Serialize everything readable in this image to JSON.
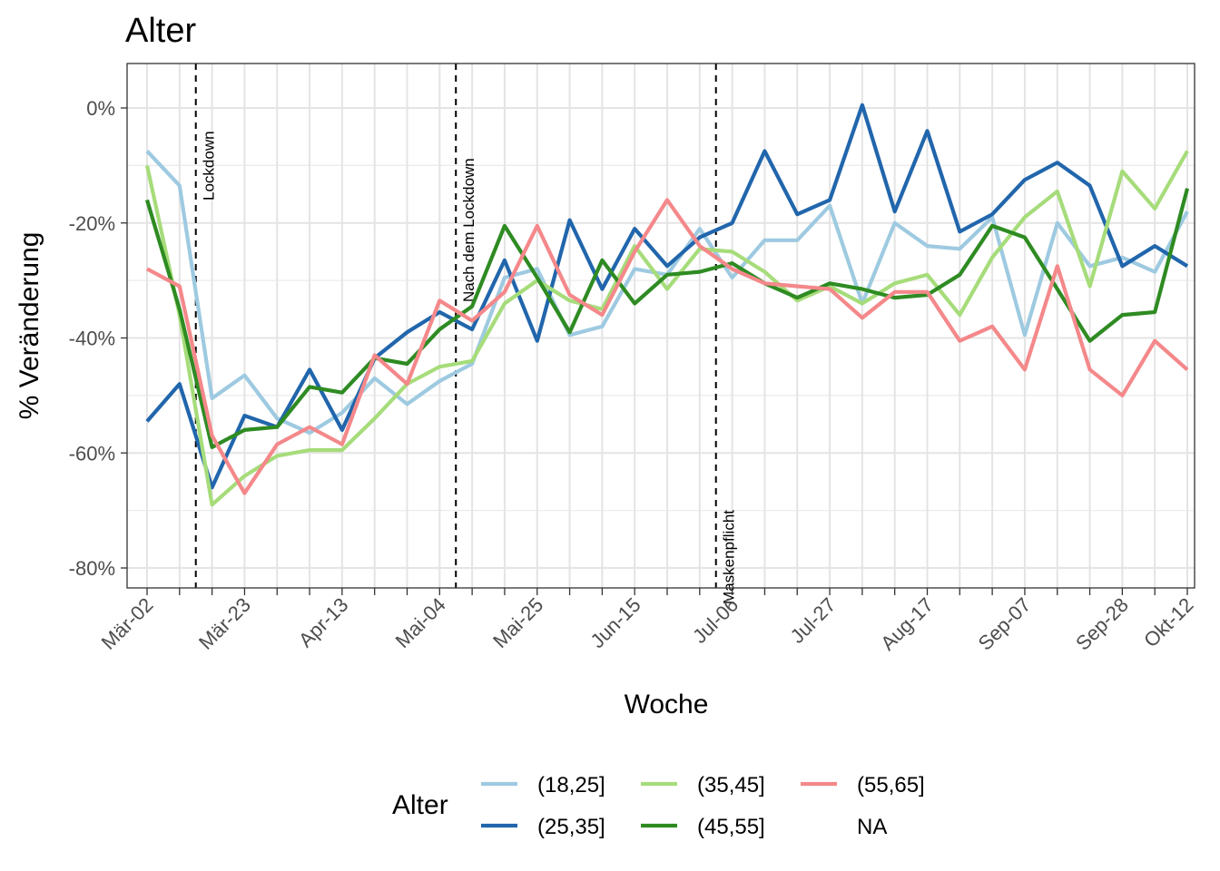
{
  "chart_data": {
    "type": "line",
    "title": "Alter",
    "xlabel": "Woche",
    "ylabel": "% Veränderung",
    "x_tick_labels": [
      "Mär-02",
      "Mär-23",
      "Apr-13",
      "Mai-04",
      "Mai-25",
      "Jun-15",
      "Jul-06",
      "Jul-27",
      "Aug-17",
      "Sep-07",
      "Sep-28",
      "Okt-12"
    ],
    "x_tick_index": [
      0,
      3,
      6,
      9,
      12,
      15,
      18,
      21,
      24,
      27,
      30,
      32
    ],
    "n_weeks": 33,
    "y_ticks": [
      0,
      -20,
      -40,
      -60,
      -80
    ],
    "y_tick_labels": [
      "0%",
      "-20%",
      "-40%",
      "-60%",
      "-80%"
    ],
    "ylim": [
      -84,
      8
    ],
    "grid": true,
    "legend": {
      "title": "Alter",
      "position": "bottom",
      "entries": [
        "(18,25]",
        "(25,35]",
        "(35,45]",
        "(45,55]",
        "(55,65]",
        "NA"
      ]
    },
    "annotations": [
      {
        "label": "Lockdown",
        "x_week": 1.5
      },
      {
        "label": "Nach dem Lockdown",
        "x_week": 9.5
      },
      {
        "label": "Maskenpflicht",
        "x_week": 17.5
      }
    ],
    "series": [
      {
        "name": "(18,25]",
        "color": "#9ecae1",
        "values": [
          -7.5,
          -13.5,
          -50.5,
          -46.5,
          -54,
          -56.5,
          -53,
          -47,
          -51.5,
          -47.5,
          -44.5,
          -29.5,
          -28,
          -39.5,
          -38,
          -28,
          -29,
          -21,
          -29.5,
          -23,
          -23,
          -17,
          -34,
          -20,
          -24,
          -24.5,
          -19,
          -39.5,
          -20,
          -27.5,
          -26,
          -28.5,
          -18
        ]
      },
      {
        "name": "(25,35]",
        "color": "#2166ac",
        "values": [
          -54.5,
          -48,
          -66,
          -53.5,
          -55.5,
          -45.5,
          -56,
          -43.5,
          -39,
          -35.5,
          -38.5,
          -26.5,
          -40.5,
          -19.5,
          -31.5,
          -21,
          -27.5,
          -22.5,
          -20,
          -7.5,
          -18.5,
          -16,
          0.5,
          -18,
          -4,
          -21.5,
          -18.5,
          -12.5,
          -9.5,
          -13.5,
          -27.5,
          -24,
          -27.5
        ]
      },
      {
        "name": "(35,45]",
        "color": "#a6dc7a",
        "values": [
          -10,
          -36,
          -69,
          -64,
          -60.5,
          -59.5,
          -59.5,
          -54,
          -48,
          -45,
          -44,
          -34,
          -30,
          -33.5,
          -35,
          -24,
          -31.5,
          -24.5,
          -25,
          -28.5,
          -33.5,
          -31,
          -34,
          -30.5,
          -29,
          -36,
          -26,
          -19,
          -14.5,
          -31,
          -11,
          -17.5,
          -7.5
        ]
      },
      {
        "name": "(45,55]",
        "color": "#2e8b22",
        "values": [
          -16,
          -35,
          -59,
          -56,
          -55.5,
          -48.5,
          -49.5,
          -43.5,
          -44.5,
          -38.5,
          -34.5,
          -20.5,
          -29.5,
          -39,
          -26.5,
          -34,
          -29,
          -28.5,
          -27,
          -30.5,
          -33,
          -30.5,
          -31.5,
          -33,
          -32.5,
          -29,
          -20.5,
          -22.5,
          -31.5,
          -40.5,
          -36,
          -35.5,
          -14
        ]
      },
      {
        "name": "(55,65]",
        "color": "#f4888a",
        "values": [
          -28,
          -31,
          -57,
          -67,
          -58.5,
          -55.5,
          -58.5,
          -43,
          -48,
          -33.5,
          -37,
          -32,
          -20.5,
          -32.5,
          -36,
          -25,
          -16,
          -24,
          -28,
          -30.5,
          -31,
          -31.5,
          -36.5,
          -32,
          -32,
          -40.5,
          -38,
          -45.5,
          -27.5,
          -45.5,
          -50,
          -40.5,
          -45.5
        ]
      },
      {
        "name": "NA",
        "color": null,
        "values": []
      }
    ]
  }
}
